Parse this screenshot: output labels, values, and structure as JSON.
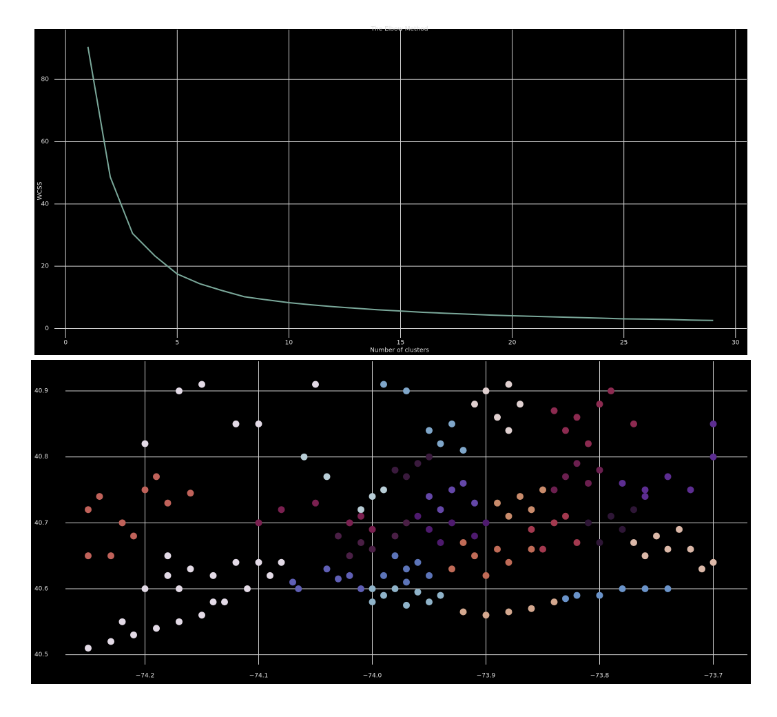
{
  "chart_data": [
    {
      "type": "line",
      "title": "The Elbow Method",
      "xlabel": "Number of clusters",
      "ylabel": "WCSS",
      "x": [
        1,
        2,
        3,
        4,
        5,
        6,
        7,
        8,
        9,
        10,
        11,
        12,
        13,
        14,
        15,
        16,
        17,
        18,
        19,
        20,
        21,
        22,
        23,
        24,
        25,
        26,
        27,
        28,
        29
      ],
      "series": [
        {
          "color": "#7aa89a",
          "values": [
            90.5,
            48.7,
            30.5,
            23.3,
            17.5,
            14.4,
            12.2,
            10.2,
            9.2,
            8.3,
            7.6,
            7.0,
            6.5,
            6.0,
            5.6,
            5.2,
            4.9,
            4.6,
            4.3,
            4.1,
            3.9,
            3.7,
            3.5,
            3.3,
            3.1,
            3.0,
            2.9,
            2.7,
            2.6
          ]
        }
      ],
      "xlim": [
        -0.5,
        30.5
      ],
      "ylim": [
        -3,
        96
      ],
      "xticks": [
        0,
        5,
        10,
        15,
        20,
        25,
        30
      ],
      "yticks": [
        0,
        20,
        40,
        60,
        80
      ],
      "grid": true
    },
    {
      "type": "scatter",
      "xlim": [
        -74.27,
        -73.67
      ],
      "ylim": [
        40.485,
        40.945
      ],
      "xticks": [
        {
          "value": -74.2,
          "label": "−74.2"
        },
        {
          "value": -74.1,
          "label": "−74.1"
        },
        {
          "value": -74.0,
          "label": "−74.0"
        },
        {
          "value": -73.9,
          "label": "−73.9"
        },
        {
          "value": -73.8,
          "label": "−73.8"
        },
        {
          "value": -73.7,
          "label": "−73.7"
        }
      ],
      "yticks": [
        40.5,
        40.6,
        40.7,
        40.8,
        40.9
      ],
      "grid": true,
      "series": [
        {
          "color": "#e3dae6",
          "x": [
            -74.25,
            -74.23,
            -74.21,
            -74.19,
            -74.17,
            -74.15,
            -74.13,
            -74.11,
            -74.09,
            -74.08,
            -74.2,
            -74.18,
            -74.16,
            -74.14,
            -74.12,
            -74.1,
            -74.17,
            -74.22,
            -74.14,
            -74.15,
            -74.17,
            -74.2,
            -74.12,
            -74.05,
            -74.1,
            -74.18
          ],
          "y": [
            40.51,
            40.52,
            40.53,
            40.54,
            40.55,
            40.56,
            40.58,
            40.6,
            40.62,
            40.64,
            40.6,
            40.62,
            40.63,
            40.62,
            40.64,
            40.64,
            40.6,
            40.55,
            40.58,
            40.91,
            40.9,
            40.82,
            40.85,
            40.91,
            40.85,
            40.65
          ]
        },
        {
          "color": "#c0625a",
          "x": [
            -74.25,
            -74.24,
            -74.22,
            -74.2,
            -74.19,
            -74.18,
            -74.25,
            -74.23,
            -74.16,
            -74.21
          ],
          "y": [
            40.72,
            40.74,
            40.7,
            40.75,
            40.77,
            40.73,
            40.65,
            40.65,
            40.745,
            40.68
          ]
        },
        {
          "color": "#5f5fb5",
          "x": [
            -74.07,
            -74.04,
            -74.02,
            -74.01,
            -74.03,
            -74.065
          ],
          "y": [
            40.61,
            40.63,
            40.62,
            40.6,
            40.615,
            40.6
          ]
        },
        {
          "color": "#8fb3c9",
          "x": [
            -74.0,
            -73.99,
            -73.97,
            -73.95,
            -73.94,
            -73.98,
            -73.96,
            -74.0
          ],
          "y": [
            40.58,
            40.59,
            40.575,
            40.58,
            40.59,
            40.6,
            40.595,
            40.6
          ]
        },
        {
          "color": "#5c74b8",
          "x": [
            -73.99,
            -73.97,
            -73.96,
            -73.98,
            -73.95,
            -73.97
          ],
          "y": [
            40.62,
            40.63,
            40.64,
            40.65,
            40.62,
            40.61
          ]
        },
        {
          "color": "#c06b57",
          "x": [
            -73.93,
            -73.91,
            -73.89,
            -73.92,
            -73.88,
            -73.9,
            -73.86
          ],
          "y": [
            40.63,
            40.65,
            40.66,
            40.67,
            40.64,
            40.62,
            40.66
          ]
        },
        {
          "color": "#4a1f45",
          "x": [
            -74.02,
            -74.01,
            -74.03,
            -74.0,
            -73.98,
            -74.0,
            -73.97
          ],
          "y": [
            40.65,
            40.67,
            40.68,
            40.69,
            40.68,
            40.66,
            40.7
          ]
        },
        {
          "color": "#4e1a6e",
          "x": [
            -73.95,
            -73.93,
            -73.91,
            -73.94,
            -73.9,
            -73.96
          ],
          "y": [
            40.69,
            40.7,
            40.68,
            40.67,
            40.7,
            40.71
          ]
        },
        {
          "color": "#6447a8",
          "x": [
            -73.95,
            -73.93,
            -73.91,
            -73.94,
            -73.92
          ],
          "y": [
            40.74,
            40.75,
            40.73,
            40.72,
            40.76
          ]
        },
        {
          "color": "#c98b6b",
          "x": [
            -73.89,
            -73.87,
            -73.86,
            -73.88,
            -73.85
          ],
          "y": [
            40.73,
            40.74,
            40.72,
            40.71,
            40.75
          ]
        },
        {
          "color": "#a3394f",
          "x": [
            -73.86,
            -73.84,
            -73.82,
            -73.85,
            -73.83
          ],
          "y": [
            40.69,
            40.7,
            40.67,
            40.66,
            40.71
          ]
        },
        {
          "color": "#2e1636",
          "x": [
            -73.81,
            -73.79,
            -73.78,
            -73.8,
            -73.77
          ],
          "y": [
            40.7,
            40.71,
            40.69,
            40.67,
            40.72
          ]
        },
        {
          "color": "#dbb8a8",
          "x": [
            -73.77,
            -73.75,
            -73.74,
            -73.76,
            -73.73,
            -73.7,
            -73.71,
            -73.72
          ],
          "y": [
            40.67,
            40.68,
            40.66,
            40.65,
            40.69,
            40.64,
            40.63,
            40.66
          ]
        },
        {
          "color": "#5c2d91",
          "x": [
            -73.78,
            -73.76,
            -73.74,
            -73.72,
            -73.7,
            -73.7,
            -73.76
          ],
          "y": [
            40.76,
            40.75,
            40.77,
            40.75,
            40.8,
            40.85,
            40.74
          ]
        },
        {
          "color": "#6b1f4f",
          "x": [
            -73.83,
            -73.81,
            -73.8,
            -73.84,
            -73.82
          ],
          "y": [
            40.77,
            40.76,
            40.78,
            40.75,
            40.79
          ]
        },
        {
          "color": "#e0d0d0",
          "x": [
            -73.91,
            -73.89,
            -73.9,
            -73.87,
            -73.88,
            -73.88
          ],
          "y": [
            40.88,
            40.86,
            40.9,
            40.88,
            40.84,
            40.91
          ]
        },
        {
          "color": "#8c2a50",
          "x": [
            -73.84,
            -73.82,
            -73.8,
            -73.83,
            -73.79,
            -73.81,
            -73.77
          ],
          "y": [
            40.87,
            40.86,
            40.88,
            40.84,
            40.9,
            40.82,
            40.85
          ]
        },
        {
          "color": "#7fa6c9",
          "x": [
            -73.94,
            -73.92,
            -73.95,
            -73.93,
            -73.99,
            -73.97
          ],
          "y": [
            40.82,
            40.81,
            40.84,
            40.85,
            40.91,
            40.9
          ]
        },
        {
          "color": "#3a1a3d",
          "x": [
            -73.98,
            -73.96,
            -73.97,
            -73.95
          ],
          "y": [
            40.78,
            40.79,
            40.77,
            40.8
          ]
        },
        {
          "color": "#b8cdd6",
          "x": [
            -74.0,
            -73.99,
            -74.01,
            -74.04,
            -74.06
          ],
          "y": [
            40.74,
            40.75,
            40.72,
            40.77,
            40.8
          ]
        },
        {
          "color": "#7a2050",
          "x": [
            -74.01,
            -74.0,
            -74.02,
            -74.08,
            -74.05,
            -74.1
          ],
          "y": [
            40.71,
            40.69,
            40.7,
            40.72,
            40.73,
            40.7
          ]
        },
        {
          "color": "#6a93c9",
          "x": [
            -73.83,
            -73.8,
            -73.78,
            -73.76,
            -73.74,
            -73.82
          ],
          "y": [
            40.585,
            40.59,
            40.6,
            40.6,
            40.6,
            40.59
          ]
        },
        {
          "color": "#d4a88f",
          "x": [
            -73.9,
            -73.88,
            -73.86,
            -73.84,
            -73.92
          ],
          "y": [
            40.56,
            40.565,
            40.57,
            40.58,
            40.565
          ]
        }
      ]
    }
  ]
}
